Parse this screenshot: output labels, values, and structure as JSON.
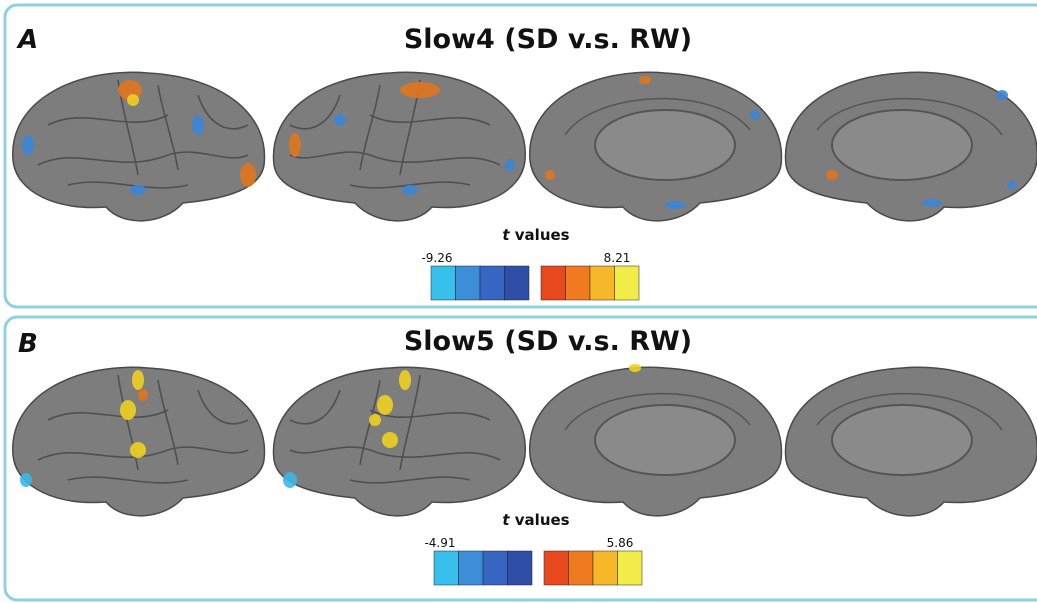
{
  "panels": [
    {
      "label": "A",
      "title": "Slow4 (SD v.s. RW)",
      "colorbar": {
        "label_var": "t",
        "label_text": "values",
        "min": -9.26,
        "max": 8.21
      }
    },
    {
      "label": "B",
      "title": "Slow5 (SD v.s. RW)",
      "colorbar": {
        "label_var": "t",
        "label_text": "values",
        "min": -4.91,
        "max": 5.86
      }
    }
  ]
}
